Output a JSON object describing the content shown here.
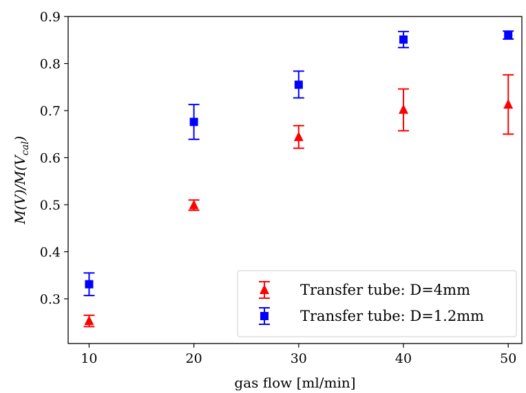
{
  "chart_data": {
    "type": "scatter",
    "title": "",
    "xlabel": "gas flow [ml/min]",
    "ylabel": "M(V̇)/M(V̇_cal)",
    "ylabel_parts": {
      "m1": "M(",
      "v1": "V",
      "mid": ")/M(",
      "v2": "V",
      "sub": "cal",
      "end": ")"
    },
    "xlim": [
      8,
      51.3
    ],
    "ylim": [
      0.205,
      0.9
    ],
    "xticks": [
      10,
      20,
      30,
      40,
      50
    ],
    "xtick_labels": [
      "10",
      "20",
      "30",
      "40",
      "50"
    ],
    "yticks": [
      0.3,
      0.4,
      0.5,
      0.6,
      0.7,
      0.8,
      0.9
    ],
    "ytick_labels": [
      "0.3",
      "0.4",
      "0.5",
      "0.6",
      "0.7",
      "0.8",
      "0.9"
    ],
    "grid": false,
    "legend_position": "lower-right",
    "series": [
      {
        "name": "Transfer tube: D=4mm",
        "marker": "triangle",
        "color": "#ff0000",
        "x": [
          10,
          20,
          30,
          40,
          50
        ],
        "y": [
          0.253,
          0.499,
          0.644,
          0.702,
          0.713
        ],
        "yerr_low": [
          0.241,
          0.488,
          0.62,
          0.657,
          0.65
        ],
        "yerr_high": [
          0.265,
          0.51,
          0.668,
          0.746,
          0.776
        ]
      },
      {
        "name": "Transfer tube: D=1.2mm",
        "marker": "square",
        "color": "#0000ff",
        "x": [
          10,
          20,
          30,
          40,
          50
        ],
        "y": [
          0.331,
          0.676,
          0.755,
          0.851,
          0.861
        ],
        "yerr_low": [
          0.307,
          0.639,
          0.727,
          0.834,
          0.852
        ],
        "yerr_high": [
          0.355,
          0.713,
          0.784,
          0.868,
          0.869
        ]
      }
    ]
  }
}
